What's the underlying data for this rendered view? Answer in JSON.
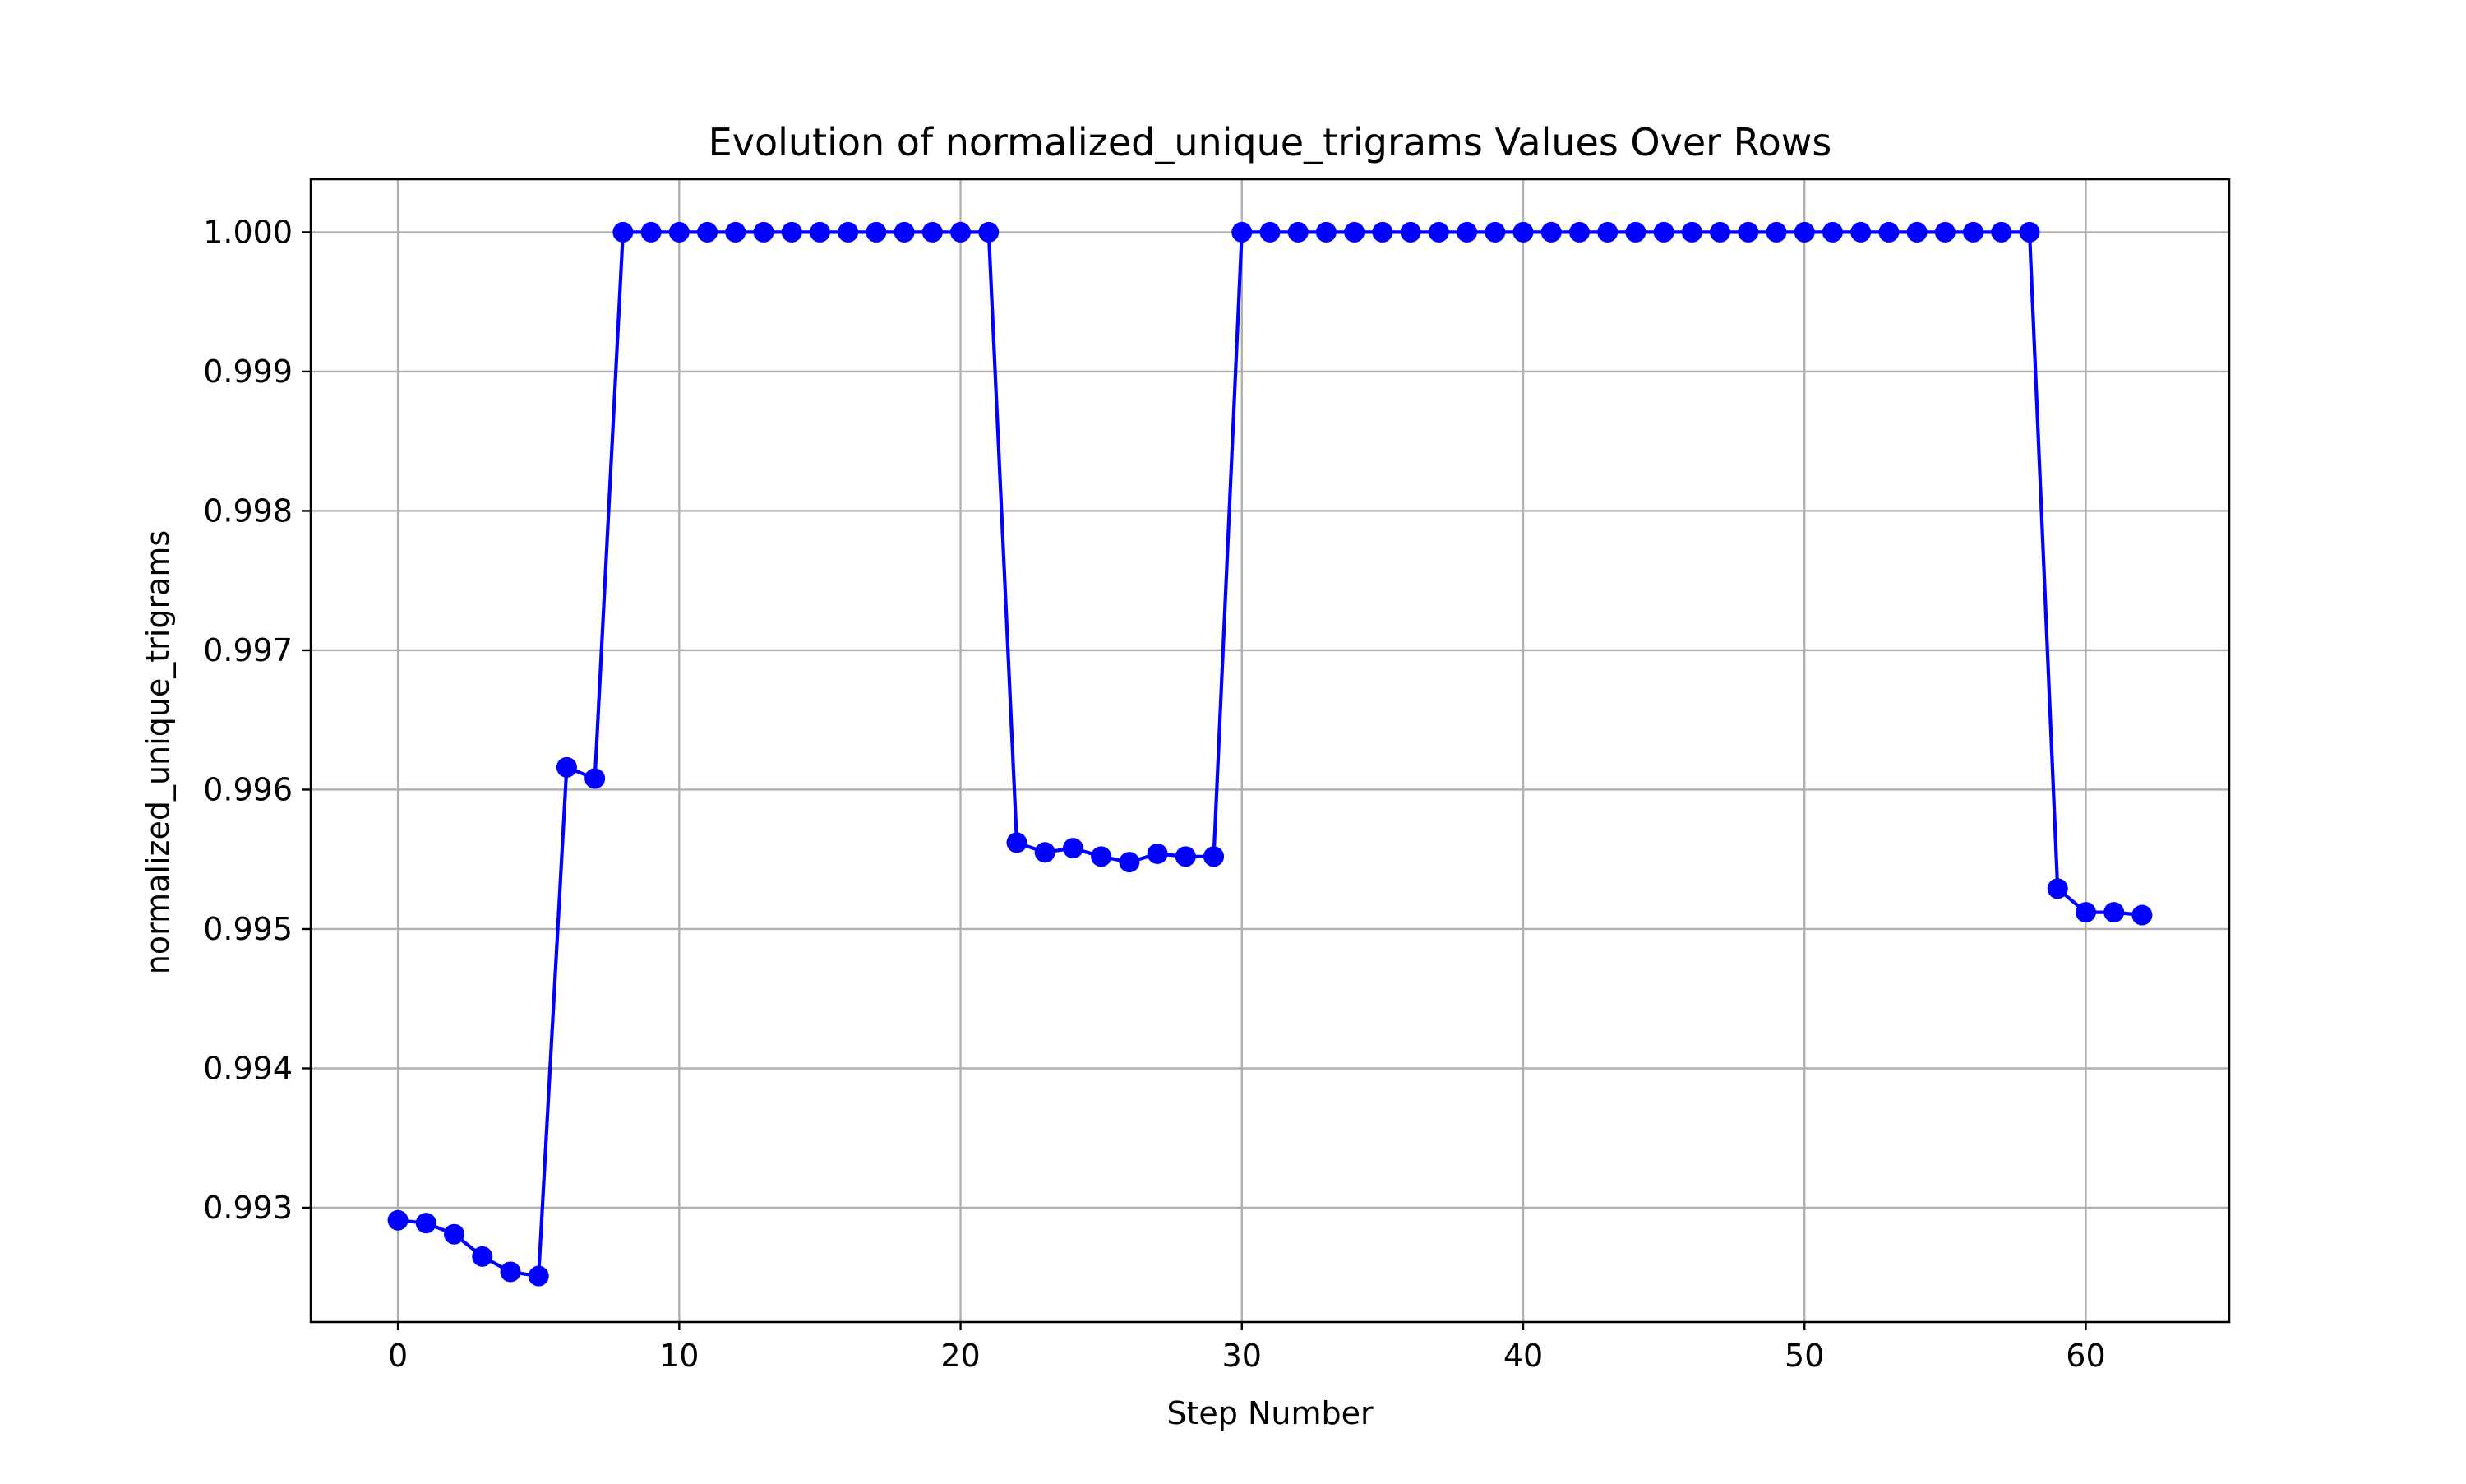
{
  "chart_data": {
    "type": "line",
    "title": "Evolution of normalized_unique_trigrams Values Over Rows",
    "xlabel": "Step Number",
    "ylabel": "normalized_unique_trigrams",
    "xlim": [
      -3.1,
      65.1
    ],
    "ylim": [
      0.99218,
      1.00038
    ],
    "xticks": [
      0,
      10,
      20,
      30,
      40,
      50,
      60
    ],
    "xtick_labels": [
      "0",
      "10",
      "20",
      "30",
      "40",
      "50",
      "60"
    ],
    "yticks": [
      0.993,
      0.994,
      0.995,
      0.996,
      0.997,
      0.998,
      0.999,
      1.0
    ],
    "ytick_labels": [
      "0.993",
      "0.994",
      "0.995",
      "0.996",
      "0.997",
      "0.998",
      "0.999",
      "1.000"
    ],
    "grid": true,
    "color": "#0000ff",
    "marker": "circle",
    "series": [
      {
        "x": [
          0,
          1,
          2,
          3,
          4,
          5,
          6,
          7,
          8,
          9,
          10,
          11,
          12,
          13,
          14,
          15,
          16,
          17,
          18,
          19,
          20,
          21,
          22,
          23,
          24,
          25,
          26,
          27,
          28,
          29,
          30,
          31,
          32,
          33,
          34,
          35,
          36,
          37,
          38,
          39,
          40,
          41,
          42,
          43,
          44,
          45,
          46,
          47,
          48,
          49,
          50,
          51,
          52,
          53,
          54,
          55,
          56,
          57,
          58,
          59,
          60,
          61,
          62
        ],
        "values": [
          0.99291,
          0.99289,
          0.99281,
          0.99265,
          0.99254,
          0.99251,
          0.99616,
          0.99608,
          1.0,
          1.0,
          1.0,
          1.0,
          1.0,
          1.0,
          1.0,
          1.0,
          1.0,
          1.0,
          1.0,
          1.0,
          1.0,
          1.0,
          0.99562,
          0.99555,
          0.99558,
          0.99552,
          0.99548,
          0.99554,
          0.99552,
          0.99552,
          1.0,
          1.0,
          1.0,
          1.0,
          1.0,
          1.0,
          1.0,
          1.0,
          1.0,
          1.0,
          1.0,
          1.0,
          1.0,
          1.0,
          1.0,
          1.0,
          1.0,
          1.0,
          1.0,
          1.0,
          1.0,
          1.0,
          1.0,
          1.0,
          1.0,
          1.0,
          1.0,
          1.0,
          1.0,
          0.99529,
          0.99512,
          0.99512,
          0.9951
        ]
      }
    ]
  }
}
